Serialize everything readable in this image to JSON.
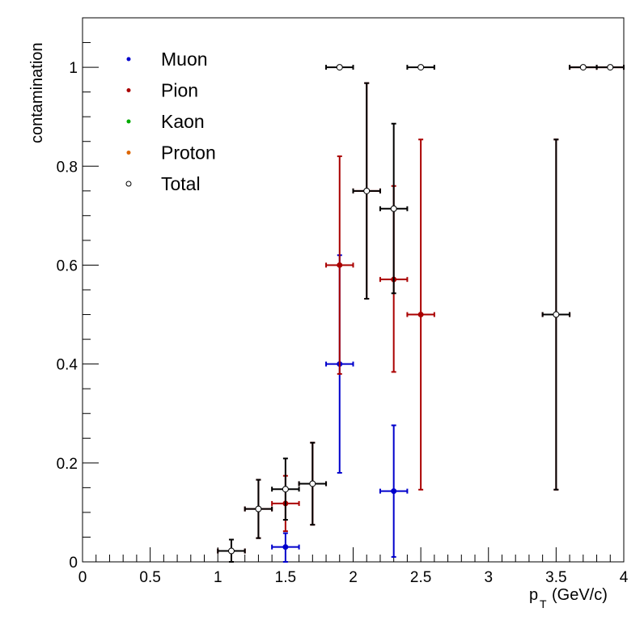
{
  "chart_data": {
    "type": "scatter",
    "xlabel": "p_{T} (GeV/c)",
    "ylabel": "contamination",
    "xlim": [
      0,
      4
    ],
    "ylim": [
      0,
      1.1
    ],
    "x_ticks": [
      "0",
      "0.5",
      "1",
      "1.5",
      "2",
      "2.5",
      "3",
      "3.5",
      "4"
    ],
    "y_ticks": [
      "0",
      "0.2",
      "0.4",
      "0.6",
      "0.8",
      "1"
    ],
    "x_tick_values": [
      0,
      0.5,
      1,
      1.5,
      2,
      2.5,
      3,
      3.5,
      4
    ],
    "y_tick_values": [
      0,
      0.2,
      0.4,
      0.6,
      0.8,
      1.0
    ],
    "grid": false,
    "legend_position": "top-left",
    "series": [
      {
        "name": "Muon",
        "color": "#0000cc",
        "marker": "filled",
        "points": [
          {
            "x": 1.5,
            "y": 0.03,
            "xerr": 0.1,
            "ylo": 0.0,
            "yhi": 0.058
          },
          {
            "x": 1.9,
            "y": 0.4,
            "xerr": 0.1,
            "ylo": 0.18,
            "yhi": 0.62
          },
          {
            "x": 2.3,
            "y": 0.143,
            "xerr": 0.1,
            "ylo": 0.01,
            "yhi": 0.276
          }
        ]
      },
      {
        "name": "Pion",
        "color": "#aa0000",
        "marker": "filled",
        "points": [
          {
            "x": 1.1,
            "y": 0.022,
            "xerr": 0.1,
            "ylo": 0.0,
            "yhi": 0.045
          },
          {
            "x": 1.3,
            "y": 0.107,
            "xerr": 0.1,
            "ylo": 0.048,
            "yhi": 0.166
          },
          {
            "x": 1.5,
            "y": 0.118,
            "xerr": 0.1,
            "ylo": 0.062,
            "yhi": 0.174
          },
          {
            "x": 1.7,
            "y": 0.158,
            "xerr": 0.1,
            "ylo": 0.075,
            "yhi": 0.241
          },
          {
            "x": 1.9,
            "y": 0.6,
            "xerr": 0.1,
            "ylo": 0.38,
            "yhi": 0.82
          },
          {
            "x": 2.1,
            "y": 0.75,
            "xerr": 0.1,
            "ylo": 0.532,
            "yhi": 0.968
          },
          {
            "x": 2.3,
            "y": 0.571,
            "xerr": 0.1,
            "ylo": 0.384,
            "yhi": 0.76
          },
          {
            "x": 2.5,
            "y": 0.5,
            "xerr": 0.1,
            "ylo": 0.146,
            "yhi": 0.854
          },
          {
            "x": 3.5,
            "y": 0.5,
            "xerr": 0.1,
            "ylo": 0.146,
            "yhi": 0.854
          },
          {
            "x": 3.7,
            "y": 1.0,
            "xerr": 0.1,
            "ylo": 1.0,
            "yhi": 1.0
          },
          {
            "x": 3.9,
            "y": 1.0,
            "xerr": 0.1,
            "ylo": 1.0,
            "yhi": 1.0
          }
        ]
      },
      {
        "name": "Kaon",
        "color": "#00aa00",
        "marker": "filled",
        "points": []
      },
      {
        "name": "Proton",
        "color": "#dd6600",
        "marker": "filled",
        "points": []
      },
      {
        "name": "Total",
        "color": "#000000",
        "marker": "open",
        "points": [
          {
            "x": 1.1,
            "y": 0.022,
            "xerr": 0.1,
            "ylo": 0.0,
            "yhi": 0.045
          },
          {
            "x": 1.3,
            "y": 0.107,
            "xerr": 0.1,
            "ylo": 0.048,
            "yhi": 0.166
          },
          {
            "x": 1.5,
            "y": 0.147,
            "xerr": 0.1,
            "ylo": 0.085,
            "yhi": 0.209
          },
          {
            "x": 1.7,
            "y": 0.158,
            "xerr": 0.1,
            "ylo": 0.075,
            "yhi": 0.241
          },
          {
            "x": 1.9,
            "y": 1.0,
            "xerr": 0.1,
            "ylo": 1.0,
            "yhi": 1.0
          },
          {
            "x": 2.1,
            "y": 0.75,
            "xerr": 0.1,
            "ylo": 0.532,
            "yhi": 0.968
          },
          {
            "x": 2.3,
            "y": 0.714,
            "xerr": 0.1,
            "ylo": 0.543,
            "yhi": 0.886
          },
          {
            "x": 2.5,
            "y": 1.0,
            "xerr": 0.1,
            "ylo": 1.0,
            "yhi": 1.0
          },
          {
            "x": 3.5,
            "y": 0.5,
            "xerr": 0.1,
            "ylo": 0.146,
            "yhi": 0.854
          },
          {
            "x": 3.7,
            "y": 1.0,
            "xerr": 0.1,
            "ylo": 1.0,
            "yhi": 1.0
          },
          {
            "x": 3.9,
            "y": 1.0,
            "xerr": 0.1,
            "ylo": 1.0,
            "yhi": 1.0
          }
        ]
      }
    ]
  }
}
